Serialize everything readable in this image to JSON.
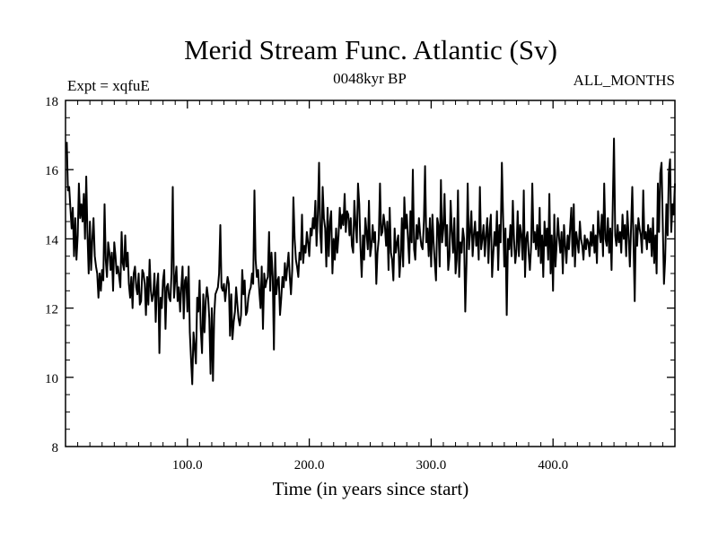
{
  "chart_data": {
    "type": "line",
    "title": "Merid Stream Func. Atlantic (Sv)",
    "subtitle_left": "Expt = xqfuE",
    "subtitle_center": "0048kyr BP",
    "subtitle_right": "ALL_MONTHS",
    "xlabel": "Time (in years since start)",
    "ylabel": "",
    "xlim": [
      0,
      500
    ],
    "ylim": [
      8,
      18
    ],
    "x_ticks": [
      100,
      200,
      300,
      400
    ],
    "x_tick_labels": [
      "100.0",
      "200.0",
      "300.0",
      "400.0"
    ],
    "y_ticks": [
      8,
      10,
      12,
      14,
      16,
      18
    ],
    "y_tick_labels": [
      "8",
      "10",
      "12",
      "14",
      "16",
      "18"
    ],
    "grid": false,
    "series": [
      {
        "name": "Merid Stream Func. Atlantic",
        "x_start": 1,
        "x_step": 1,
        "values": [
          16.8,
          15.4,
          15.5,
          14.9,
          14.3,
          14.9,
          13.5,
          14.6,
          13.4,
          14.1,
          15.6,
          14.6,
          15.0,
          14.5,
          15.3,
          14.0,
          15.8,
          14.2,
          13.0,
          14.5,
          13.1,
          14.0,
          14.6,
          13.5,
          13.2,
          13.0,
          12.3,
          13.0,
          12.5,
          13.1,
          12.8,
          15.0,
          13.4,
          12.9,
          13.9,
          13.6,
          13.1,
          13.6,
          12.5,
          13.9,
          13.5,
          13.0,
          13.2,
          12.9,
          12.6,
          14.2,
          13.3,
          13.1,
          14.1,
          13.2,
          13.6,
          12.7,
          12.3,
          12.9,
          12.0,
          13.0,
          13.2,
          12.6,
          12.4,
          13.0,
          12.1,
          12.2,
          13.1,
          13.0,
          12.7,
          11.8,
          12.9,
          12.1,
          13.4,
          12.5,
          12.2,
          12.4,
          13.0,
          11.6,
          12.6,
          13.0,
          10.7,
          12.3,
          12.0,
          12.8,
          13.1,
          11.4,
          12.6,
          12.7,
          12.3,
          12.2,
          13.0,
          15.5,
          12.3,
          12.8,
          13.2,
          12.2,
          12.6,
          11.9,
          12.6,
          13.2,
          11.7,
          12.8,
          12.9,
          11.9,
          13.2,
          11.3,
          10.5,
          9.8,
          11.3,
          10.9,
          10.4,
          12.3,
          11.9,
          12.8,
          11.4,
          10.7,
          12.4,
          11.3,
          12.2,
          12.6,
          12.3,
          11.7,
          10.1,
          12.0,
          9.9,
          11.8,
          12.4,
          12.5,
          12.6,
          13.0,
          14.4,
          12.6,
          12.5,
          12.7,
          12.2,
          12.6,
          12.9,
          12.7,
          11.2,
          12.4,
          11.1,
          11.6,
          11.9,
          12.6,
          12.1,
          11.7,
          11.5,
          11.8,
          13.1,
          12.4,
          12.8,
          11.8,
          11.9,
          12.3,
          12.5,
          12.6,
          13.0,
          12.7,
          15.4,
          13.4,
          12.9,
          13.1,
          12.5,
          12.0,
          13.2,
          11.4,
          13.0,
          12.6,
          12.8,
          12.9,
          14.2,
          12.5,
          13.6,
          12.9,
          10.8,
          13.6,
          12.4,
          12.8,
          12.9,
          11.8,
          12.3,
          12.9,
          12.6,
          13.3,
          12.8,
          13.2,
          13.6,
          12.9,
          12.4,
          13.1,
          15.2,
          14.0,
          13.4,
          13.2,
          12.9,
          13.6,
          13.4,
          14.7,
          13.3,
          13.8,
          13.6,
          14.2,
          13.9,
          13.5,
          14.3,
          14.1,
          14.6,
          14.3,
          15.1,
          13.8,
          14.7,
          16.2,
          14.2,
          13.6,
          15.5,
          14.6,
          14.3,
          13.2,
          14.9,
          13.5,
          14.5,
          14.8,
          13.0,
          14.0,
          13.4,
          14.3,
          13.6,
          14.1,
          14.9,
          14.3,
          14.7,
          14.4,
          15.3,
          14.2,
          14.8,
          14.7,
          14.1,
          14.6,
          13.8,
          13.6,
          15.1,
          14.4,
          13.9,
          15.6,
          15.0,
          13.8,
          12.9,
          14.1,
          13.4,
          14.6,
          14.2,
          13.7,
          15.1,
          13.5,
          13.8,
          14.4,
          13.9,
          14.2,
          12.7,
          13.6,
          14.0,
          15.6,
          14.1,
          14.2,
          14.7,
          14.4,
          13.8,
          14.5,
          13.1,
          14.9,
          13.6,
          13.4,
          12.8,
          14.3,
          13.6,
          13.9,
          14.1,
          12.9,
          13.5,
          14.6,
          13.2,
          15.2,
          14.3,
          14.7,
          14.0,
          13.3,
          14.8,
          13.9,
          16.0,
          13.7,
          13.4,
          14.4,
          14.0,
          14.6,
          14.1,
          13.8,
          13.7,
          14.5,
          16.1,
          13.9,
          14.3,
          13.5,
          14.6,
          13.2,
          14.7,
          13.9,
          13.3,
          12.8,
          14.6,
          14.4,
          13.2,
          15.7,
          13.9,
          14.3,
          15.3,
          13.8,
          14.4,
          13.1,
          13.5,
          15.1,
          14.2,
          13.6,
          14.6,
          13.0,
          13.4,
          15.4,
          12.9,
          13.9,
          13.6,
          14.3,
          14.0,
          11.9,
          13.3,
          15.6,
          13.7,
          14.2,
          14.8,
          13.5,
          14.1,
          14.5,
          13.8,
          14.2,
          13.4,
          15.5,
          13.7,
          14.0,
          14.4,
          13.5,
          14.1,
          14.6,
          13.3,
          14.3,
          14.7,
          12.9,
          13.6,
          14.2,
          13.8,
          14.8,
          13.1,
          14.4,
          13.9,
          16.2,
          14.7,
          13.2,
          14.3,
          11.8,
          14.0,
          13.7,
          14.4,
          13.5,
          15.1,
          14.0,
          13.3,
          13.7,
          14.8,
          13.5,
          14.4,
          14.1,
          13.4,
          15.4,
          12.9,
          14.0,
          14.2,
          13.6,
          13.1,
          13.8,
          15.6,
          13.9,
          14.2,
          13.7,
          14.4,
          13.5,
          14.9,
          13.3,
          14.1,
          12.9,
          14.5,
          13.8,
          14.3,
          13.4,
          15.3,
          13.0,
          14.1,
          12.5,
          14.7,
          13.2,
          13.9,
          14.6,
          14.0,
          13.6,
          14.2,
          13.0,
          14.4,
          13.8,
          13.3,
          14.1,
          13.7,
          14.3,
          14.9,
          13.5,
          15.0,
          13.2,
          14.2,
          13.9,
          13.6,
          14.5,
          14.0,
          13.8,
          13.4,
          14.1,
          13.7,
          14.0,
          13.9,
          13.5,
          14.2,
          13.8,
          14.4,
          13.6,
          14.1,
          13.3,
          14.8,
          14.2,
          13.9,
          14.7,
          13.5,
          15.6,
          14.0,
          13.8,
          14.6,
          13.6,
          14.3,
          13.1,
          14.9,
          16.9,
          14.1,
          13.8,
          14.4,
          13.9,
          14.2,
          13.6,
          14.7,
          14.0,
          14.4,
          13.5,
          14.8,
          14.1,
          13.2,
          14.3,
          15.5,
          14.0,
          12.2,
          14.4,
          13.8,
          14.6,
          14.3,
          14.1,
          13.6,
          15.4,
          14.0,
          14.2,
          13.7,
          14.4,
          13.9,
          14.3,
          13.5,
          14.6,
          13.3,
          14.1,
          13.0,
          15.6,
          14.2,
          15.9,
          16.2,
          14.5,
          12.7,
          13.4,
          15.0,
          14.1,
          15.9,
          16.3,
          14.2,
          15.0,
          14.7,
          15.6
        ]
      }
    ]
  }
}
